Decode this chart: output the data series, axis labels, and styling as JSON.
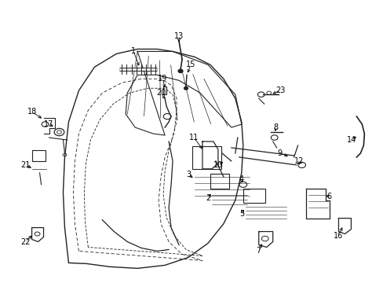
{
  "bg_color": "#ffffff",
  "line_color": "#222222",
  "fig_width": 4.89,
  "fig_height": 3.6,
  "dpi": 100
}
